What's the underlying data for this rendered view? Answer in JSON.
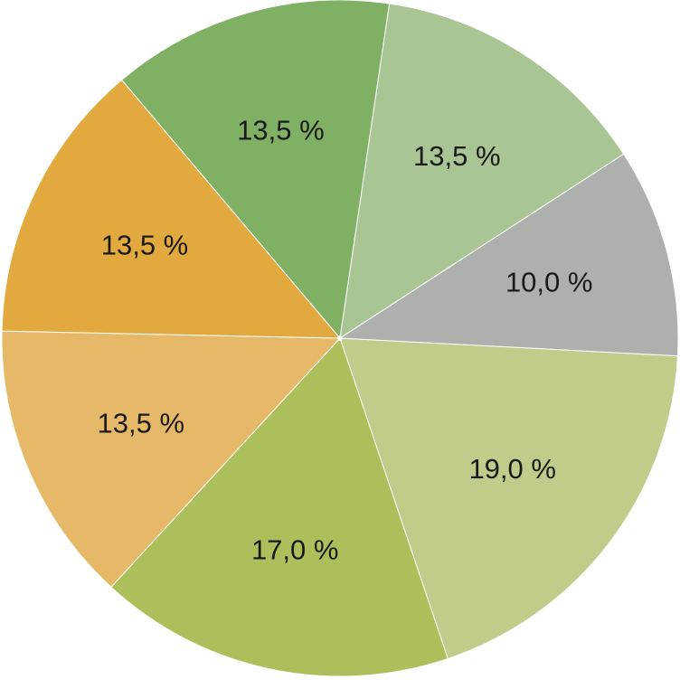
{
  "chart_data": {
    "type": "pie",
    "values": [
      19.0,
      17.0,
      13.5,
      13.5,
      13.5,
      13.5,
      10.0
    ],
    "labels": [
      "19,0 %",
      "17,0 %",
      "13,5 %",
      "13,5 %",
      "13,5 %",
      "13,5 %",
      "10,0 %"
    ],
    "colors": [
      "#bfcc8a",
      "#acbf5b",
      "#e6b968",
      "#e2a93f",
      "#80b063",
      "#a9c594",
      "#aeb0ae"
    ],
    "direction": "clockwise",
    "legend": "none"
  }
}
